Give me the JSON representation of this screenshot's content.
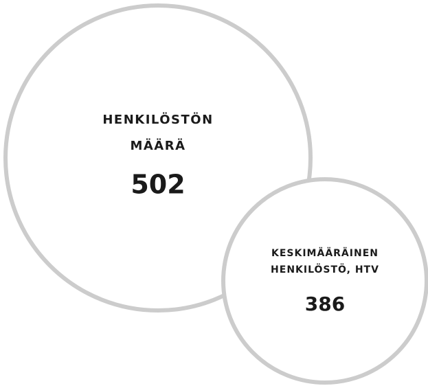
{
  "items": [
    {
      "label": [
        "HENKILÖSTÖN",
        "MÄÄRÄ"
      ],
      "value": 502
    },
    {
      "label": [
        "KESKIMÄÄRÄINEN",
        "HENKILÖSTÖ, HTV"
      ],
      "value": 386
    }
  ]
}
